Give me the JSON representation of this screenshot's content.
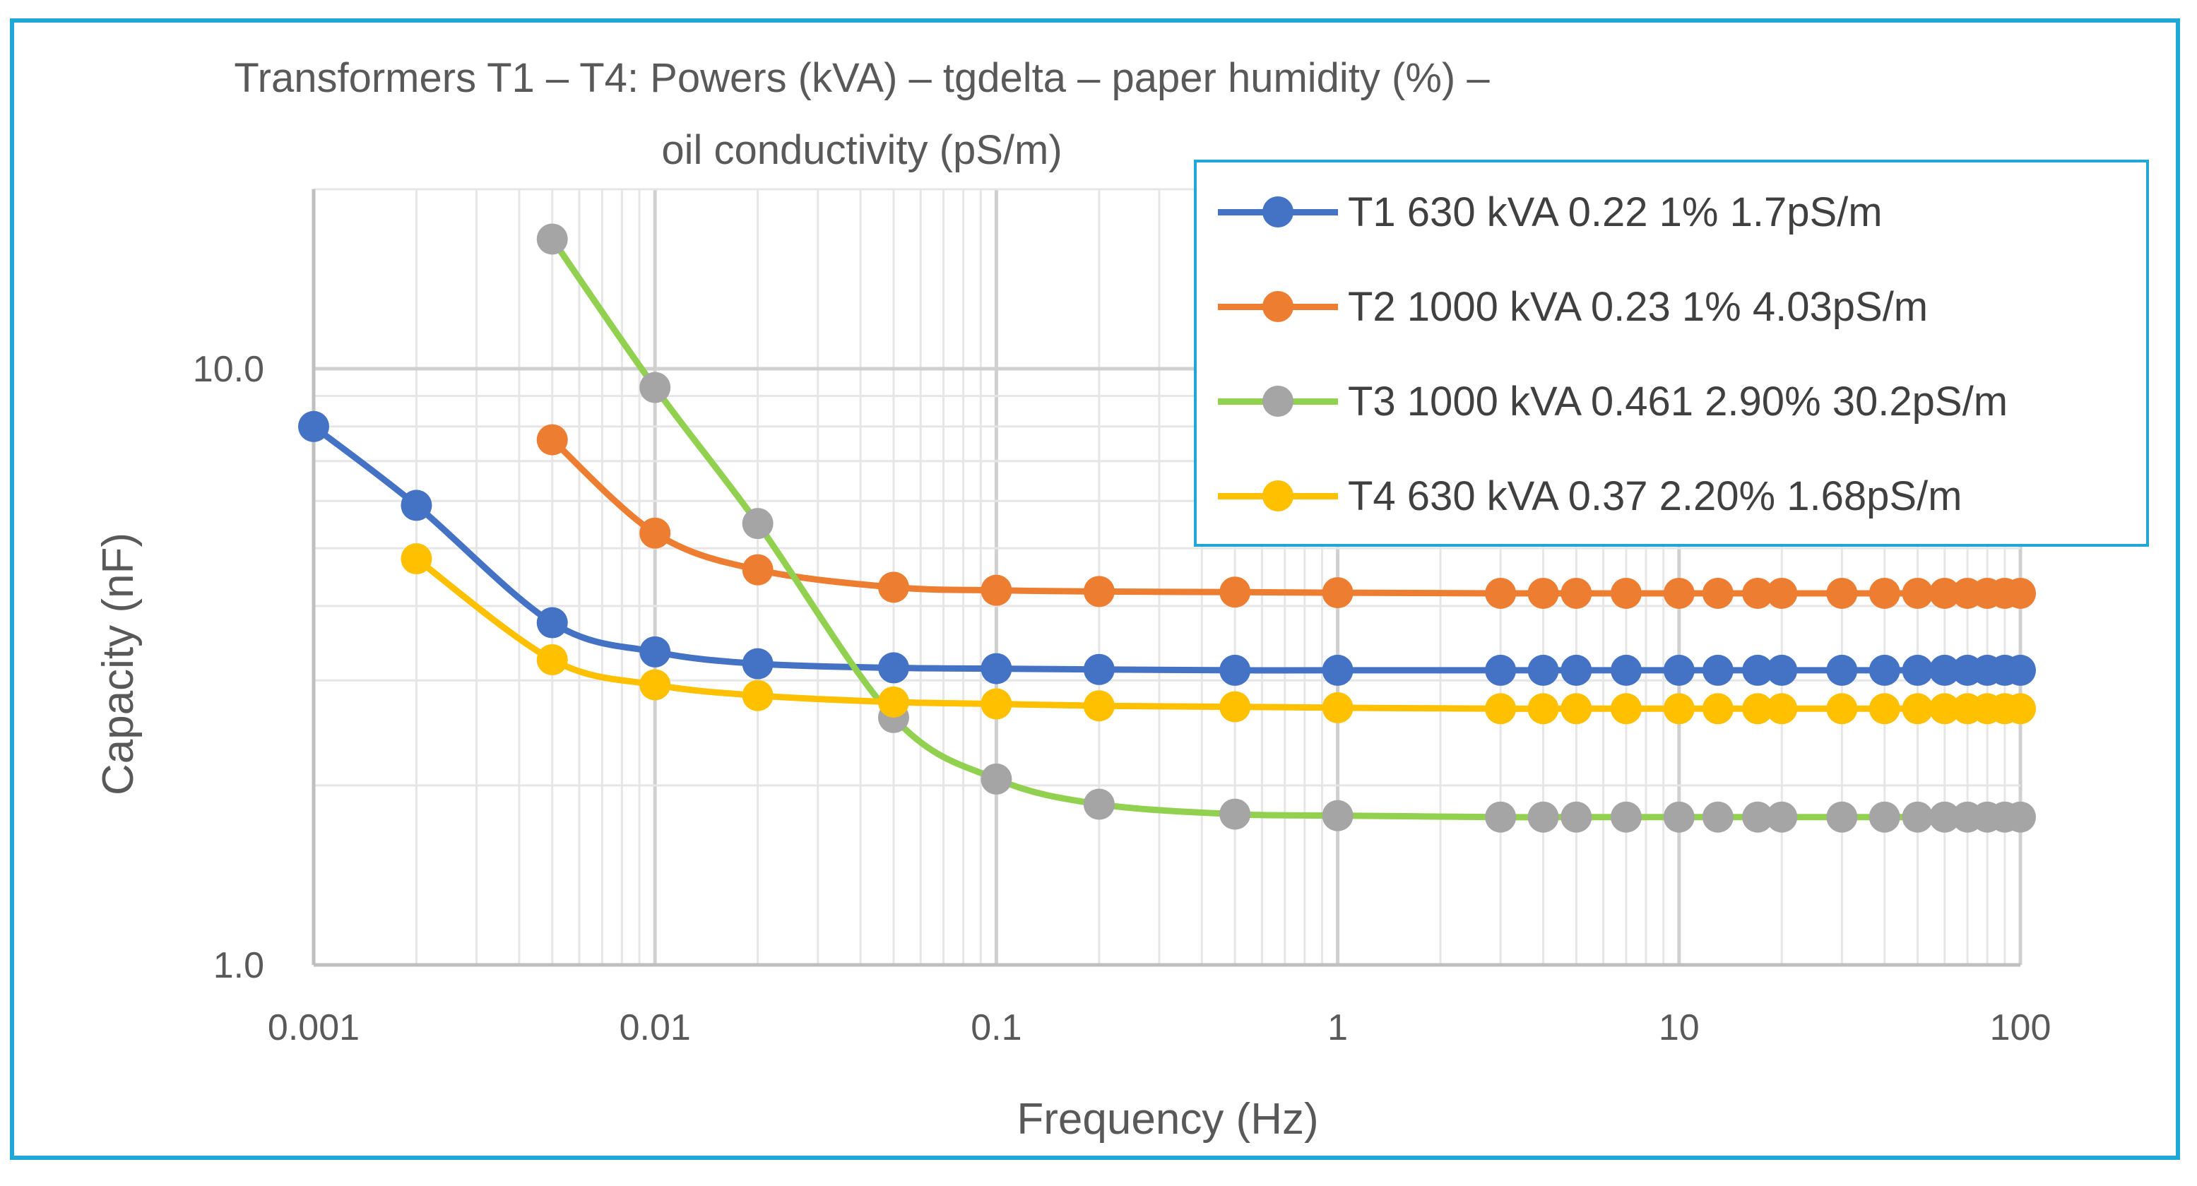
{
  "chart_data": {
    "type": "line",
    "title_lines": [
      "Transformers T1 – T4: Powers (kVA) – tgdelta – paper humidity (%) –",
      "oil conductivity (pS/m)"
    ],
    "xlabel": "Frequency (Hz)",
    "ylabel": "Capacity (nF)",
    "x_scale": "log",
    "y_scale": "log",
    "xlim": [
      0.001,
      100
    ],
    "ylim": [
      1.0,
      20.0
    ],
    "x_ticks": [
      0.001,
      0.01,
      0.1,
      1,
      10,
      100
    ],
    "x_tick_labels": [
      "0.001",
      "0.01",
      "0.1",
      "1",
      "10",
      "100"
    ],
    "y_ticks": [
      1.0,
      10.0
    ],
    "y_tick_labels": [
      "1.0",
      "10.0"
    ],
    "grid": true,
    "legend_position": "top-right",
    "series": [
      {
        "name": "T1 630 kVA 0.22 1% 1.7pS/m",
        "color": "#4472c4",
        "x": [
          0.001,
          0.002,
          0.005,
          0.01,
          0.02,
          0.05,
          0.1,
          0.2,
          0.5,
          1,
          3,
          4,
          5,
          7,
          10,
          13,
          17,
          20,
          30,
          40,
          50,
          60,
          70,
          80,
          90,
          100
        ],
        "y": [
          8.0,
          5.9,
          3.75,
          3.35,
          3.2,
          3.15,
          3.14,
          3.13,
          3.12,
          3.12,
          3.12,
          3.12,
          3.12,
          3.12,
          3.12,
          3.12,
          3.12,
          3.12,
          3.12,
          3.12,
          3.12,
          3.12,
          3.12,
          3.12,
          3.12,
          3.12
        ]
      },
      {
        "name": "T2 1000 kVA 0.23 1% 4.03pS/m",
        "color": "#ed7d31",
        "x": [
          0.005,
          0.01,
          0.02,
          0.05,
          0.1,
          0.2,
          0.5,
          1,
          3,
          4,
          5,
          7,
          10,
          13,
          17,
          20,
          30,
          40,
          50,
          60,
          70,
          80,
          90,
          100
        ],
        "y": [
          7.6,
          5.3,
          4.6,
          4.3,
          4.25,
          4.23,
          4.22,
          4.21,
          4.2,
          4.2,
          4.2,
          4.2,
          4.2,
          4.2,
          4.2,
          4.2,
          4.2,
          4.2,
          4.2,
          4.2,
          4.2,
          4.2,
          4.2,
          4.2
        ]
      },
      {
        "name": "T3 1000 kVA 0.461 2.90% 30.2pS/m",
        "color": "#92d050",
        "marker_color": "#a5a5a5",
        "x": [
          0.005,
          0.01,
          0.02,
          0.05,
          0.1,
          0.2,
          0.5,
          1,
          3,
          4,
          5,
          7,
          10,
          13,
          17,
          20,
          30,
          40,
          50,
          60,
          70,
          80,
          90,
          100
        ],
        "y": [
          16.5,
          9.3,
          5.5,
          2.6,
          2.05,
          1.86,
          1.79,
          1.78,
          1.77,
          1.77,
          1.77,
          1.77,
          1.77,
          1.77,
          1.77,
          1.77,
          1.77,
          1.77,
          1.77,
          1.77,
          1.77,
          1.77,
          1.77,
          1.77
        ]
      },
      {
        "name": "T4 630 kVA 0.37 2.20% 1.68pS/m",
        "color": "#ffc000",
        "x": [
          0.002,
          0.005,
          0.01,
          0.02,
          0.05,
          0.1,
          0.2,
          0.5,
          1,
          3,
          4,
          5,
          7,
          10,
          13,
          17,
          20,
          30,
          40,
          50,
          60,
          70,
          80,
          90,
          100
        ],
        "y": [
          4.8,
          3.25,
          2.95,
          2.83,
          2.76,
          2.74,
          2.72,
          2.71,
          2.7,
          2.69,
          2.69,
          2.69,
          2.69,
          2.69,
          2.69,
          2.69,
          2.69,
          2.69,
          2.69,
          2.69,
          2.69,
          2.69,
          2.69,
          2.69,
          2.69
        ]
      }
    ]
  }
}
